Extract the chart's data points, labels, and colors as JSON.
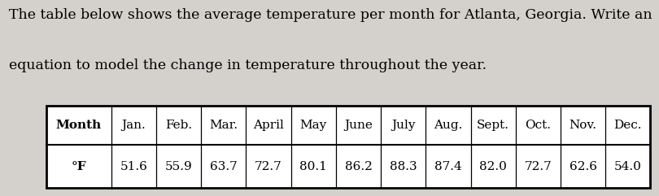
{
  "title_line1": "The table below shows the average temperature per month for Atlanta, Georgia. Write an",
  "title_line2": "equation to model the change in temperature throughout the year.",
  "months": [
    "Month",
    "Jan.",
    "Feb.",
    "Mar.",
    "April",
    "May",
    "June",
    "July",
    "Aug.",
    "Sept.",
    "Oct.",
    "Nov.",
    "Dec."
  ],
  "unit": "°F",
  "values": [
    "51.6",
    "55.9",
    "63.7",
    "72.7",
    "80.1",
    "86.2",
    "88.3",
    "87.4",
    "82.0",
    "72.7",
    "62.6",
    "54.0"
  ],
  "background_color": "#d4d0cb",
  "table_bg": "#ffffff",
  "font_size_title": 12.5,
  "font_size_table": 11.0
}
